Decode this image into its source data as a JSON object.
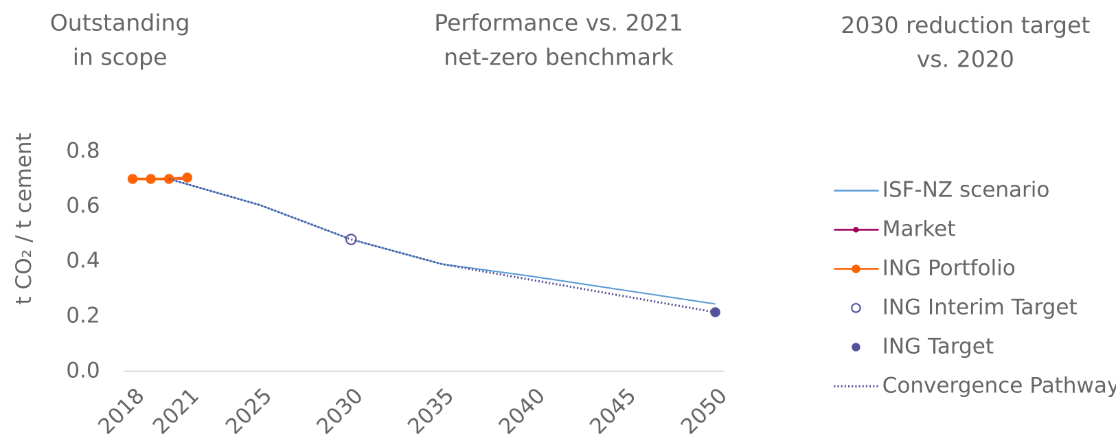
{
  "chart_data": {
    "type": "line",
    "column_headers": [
      [
        "Outstanding",
        "in scope"
      ],
      [
        "Performance vs. 2021",
        "net-zero benchmark"
      ],
      [
        "2030 reduction target",
        "vs. 2020"
      ]
    ],
    "ylabel": "t CO₂ / t cement",
    "xlim": [
      2017.5,
      2050.5
    ],
    "xticks": [
      2018,
      2021,
      2025,
      2030,
      2035,
      2040,
      2045,
      2050
    ],
    "ylim": [
      0,
      0.8
    ],
    "yticks": [
      {
        "value": 0,
        "label": "0.0"
      },
      0.2,
      0.4,
      0.6,
      0.8
    ],
    "grid": false,
    "legend": "right",
    "series": [
      {
        "name": "ISF-NZ scenario",
        "color": "#5b9bd5",
        "line": "solid",
        "marker": "none",
        "x": [
          2020,
          2025,
          2030,
          2035,
          2040,
          2045,
          2050
        ],
        "values": [
          0.7,
          0.605,
          0.48,
          0.39,
          0.345,
          0.295,
          0.245
        ]
      },
      {
        "name": "Market",
        "color": "#a0005a",
        "line": "solid",
        "marker": "filled-small",
        "x": [
          2020,
          2021
        ],
        "values": [
          0.7,
          0.7
        ]
      },
      {
        "name": "ING Portfolio",
        "color": "#ff6200",
        "line": "solid",
        "marker": "filled",
        "x": [
          2018,
          2019,
          2020,
          2021
        ],
        "values": [
          0.7,
          0.7,
          0.7,
          0.705
        ]
      },
      {
        "name": "ING Interim Target",
        "color": "#525199",
        "line": "none",
        "marker": "open",
        "x": [
          2030
        ],
        "values": [
          0.48
        ]
      },
      {
        "name": "ING Target",
        "color": "#525199",
        "line": "none",
        "marker": "filled",
        "x": [
          2050
        ],
        "values": [
          0.215
        ]
      },
      {
        "name": "Convergence Pathway",
        "color": "#525199",
        "line": "dotted",
        "marker": "none",
        "x": [
          2020,
          2025,
          2030,
          2035,
          2050
        ],
        "values": [
          0.7,
          0.605,
          0.48,
          0.39,
          0.215
        ]
      }
    ]
  }
}
